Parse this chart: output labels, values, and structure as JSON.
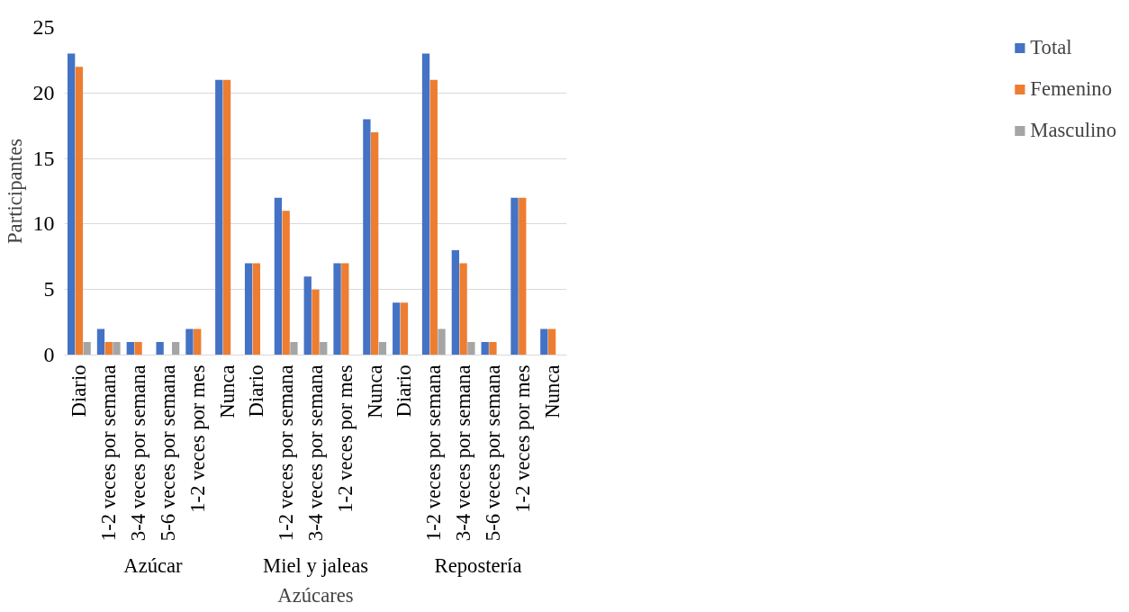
{
  "chart_data": {
    "type": "bar",
    "categories": [
      "Diario",
      "1-2 veces por semana",
      "3-4 veces por semana",
      "5-6 veces por semana",
      "1-2 veces por mes",
      "Nunca",
      "Diario",
      "1-2 veces por semana",
      "3-4 veces por semana",
      "1-2 veces por mes",
      "Nunca",
      "Diario",
      "1-2 veces por semana",
      "3-4 veces por semana",
      "5-6 veces por semana",
      "1-2 veces por mes",
      "Nunca"
    ],
    "series": [
      {
        "name": "Total",
        "color": "#4472c4",
        "values": [
          23,
          2,
          1,
          1,
          2,
          21,
          7,
          12,
          6,
          7,
          18,
          4,
          23,
          8,
          1,
          12,
          2
        ]
      },
      {
        "name": "Femenino",
        "color": "#ed7d31",
        "values": [
          22,
          1,
          1,
          0,
          2,
          21,
          7,
          11,
          5,
          7,
          17,
          4,
          21,
          7,
          1,
          12,
          2
        ]
      },
      {
        "name": "Masculino",
        "color": "#a5a5a5",
        "values": [
          1,
          1,
          0,
          1,
          0,
          0,
          0,
          1,
          1,
          0,
          1,
          0,
          2,
          1,
          0,
          0,
          0
        ]
      }
    ],
    "annotations": [
      "Azúcar",
      "Miel y jaleas",
      "Repostería"
    ],
    "xlabel": "Azúcares",
    "ylabel": "Participantes",
    "ylim": [
      0,
      25
    ],
    "yticks": [
      0,
      5,
      10,
      15,
      20,
      25
    ],
    "grid": "y",
    "legend": "right"
  }
}
